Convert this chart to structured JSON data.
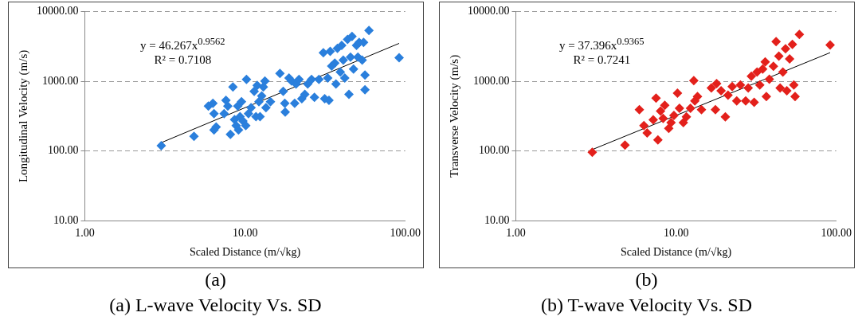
{
  "chart_data": [
    {
      "type": "scatter",
      "xlabel": "Scaled Distance (m/√kg)",
      "ylabel": "Longitudinal Velocity (m/s)",
      "log": "xy",
      "grid": "y",
      "xlim": [
        1,
        100
      ],
      "xticks": [
        {
          "value": 1,
          "label": "1.00"
        },
        {
          "value": 10,
          "label": "10.00"
        },
        {
          "value": 100,
          "label": "100.00"
        }
      ],
      "ylim": [
        10,
        10000
      ],
      "yticks": [
        {
          "value": 10,
          "label": "10.00"
        },
        {
          "value": 100,
          "label": "100.00"
        },
        {
          "value": 1000,
          "label": "1000.00"
        },
        {
          "value": 10000,
          "label": "10000.00"
        }
      ],
      "annotations": [
        "y = 46.267x$^{0.9562}$",
        "R² = 0.7108",
        "(a)",
        "(a) L-wave Velocity Vs. SD"
      ],
      "series": [
        {
          "color": "#2a7fdc",
          "marker": "diamond",
          "x": [
            3.0,
            4.8,
            5.9,
            6.3,
            6.4,
            6.4,
            6.6,
            7.6,
            7.8,
            7.4,
            8.1,
            8.4,
            8.6,
            8.8,
            9.0,
            9.1,
            9.3,
            9.5,
            9.7,
            10.1,
            10.2,
            10.5,
            10.9,
            11.4,
            11.7,
            11.9,
            12.2,
            12.4,
            12.7,
            13.0,
            13.3,
            13.5,
            14.4,
            16.5,
            17.3,
            17.7,
            17.8,
            18.8,
            19.5,
            20.4,
            20.8,
            21.7,
            22.6,
            23.6,
            24.6,
            26.0,
            27.1,
            28.9,
            30.8,
            31.4,
            32.8,
            33.4,
            34.0,
            34.7,
            36.3,
            36.9,
            37.7,
            39.3,
            40.1,
            41.0,
            41.9,
            43.6,
            44.5,
            45.5,
            46.5,
            47.5,
            49.6,
            50.6,
            51.5,
            53.8,
            54.9,
            56.0,
            56.0,
            59.3,
            91.5
          ],
          "values": [
            119,
            162,
            440,
            484,
            344,
            200,
            221,
            535,
            440,
            344,
            173,
            829,
            283,
            232,
            440,
            200,
            312,
            508,
            269,
            232,
            1062,
            344,
            418,
            716,
            312,
            871,
            508,
            312,
            618,
            829,
            1009,
            418,
            508,
            1291,
            716,
            484,
            361,
            1114,
            1009,
            484,
            916,
            1062,
            561,
            650,
            916,
            1062,
            589,
            1062,
            2559,
            561,
            1114,
            535,
            2690,
            1648,
            1820,
            916,
            2966,
            1355,
            3274,
            2006,
            1114,
            3981,
            650,
            2213,
            4393,
            1493,
            3274,
            2213,
            3606,
            2006,
            3606,
            1227,
            753,
            5346,
            2168
          ]
        },
        {
          "type": "line",
          "marker": "none",
          "color": "#000000",
          "x": [
            3.0,
            91.5
          ],
          "values": [
            132,
            3490
          ]
        }
      ]
    },
    {
      "type": "scatter",
      "xlabel": "Scaled Distance (m/√kg)",
      "ylabel": "Transverse Velocity (m/s)",
      "log": "xy",
      "grid": "y",
      "xlim": [
        1,
        100
      ],
      "xticks": [
        {
          "value": 1,
          "label": "1.00"
        },
        {
          "value": 10,
          "label": "10.00"
        },
        {
          "value": 100,
          "label": "100.00"
        }
      ],
      "ylim": [
        10,
        10000
      ],
      "yticks": [
        {
          "value": 10,
          "label": "10.00"
        },
        {
          "value": 100,
          "label": "100.00"
        },
        {
          "value": 1000,
          "label": "1000.00"
        },
        {
          "value": 10000,
          "label": "10000.00"
        }
      ],
      "annotations": [
        "y = 37.396x$^{0.9365}$",
        "R² = 0.7241",
        "(b)",
        "(b) T-wave Velocity Vs. SD"
      ],
      "series": [
        {
          "color": "#e3201b",
          "marker": "diamond",
          "x": [
            3.0,
            4.8,
            5.9,
            6.3,
            6.6,
            7.2,
            7.5,
            7.7,
            8.0,
            8.3,
            8.5,
            9.0,
            9.3,
            9.7,
            10.2,
            10.5,
            11.1,
            11.6,
            12.3,
            12.9,
            13.1,
            13.6,
            14.4,
            16.6,
            17.6,
            17.9,
            19.1,
            20.3,
            21.1,
            22.4,
            23.9,
            25.2,
            27.2,
            28.2,
            29.5,
            30.7,
            32.0,
            33.3,
            34.7,
            36.0,
            36.6,
            38.2,
            40.5,
            42.1,
            43.8,
            44.6,
            46.4,
            48.2,
            49.1,
            51.1,
            53.2,
            54.3,
            55.3,
            58.8,
            91.5
          ],
          "values": [
            96,
            122,
            392,
            232,
            182,
            281,
            574,
            144,
            374,
            294,
            453,
            211,
            255,
            324,
            676,
            411,
            255,
            309,
            411,
            1019,
            523,
            603,
            392,
            803,
            392,
            926,
            730,
            309,
            632,
            841,
            523,
            883,
            523,
            803,
            1177,
            498,
            1359,
            883,
            1494,
            1897,
            603,
            1069,
            1644,
            3700,
            2296,
            803,
            1359,
            2915,
            730,
            2089,
            3365,
            883,
            603,
            4698,
            3304
          ]
        },
        {
          "type": "line",
          "marker": "none",
          "color": "#000000",
          "x": [
            3.0,
            91.5
          ],
          "values": [
            105,
            2569
          ]
        }
      ]
    }
  ]
}
